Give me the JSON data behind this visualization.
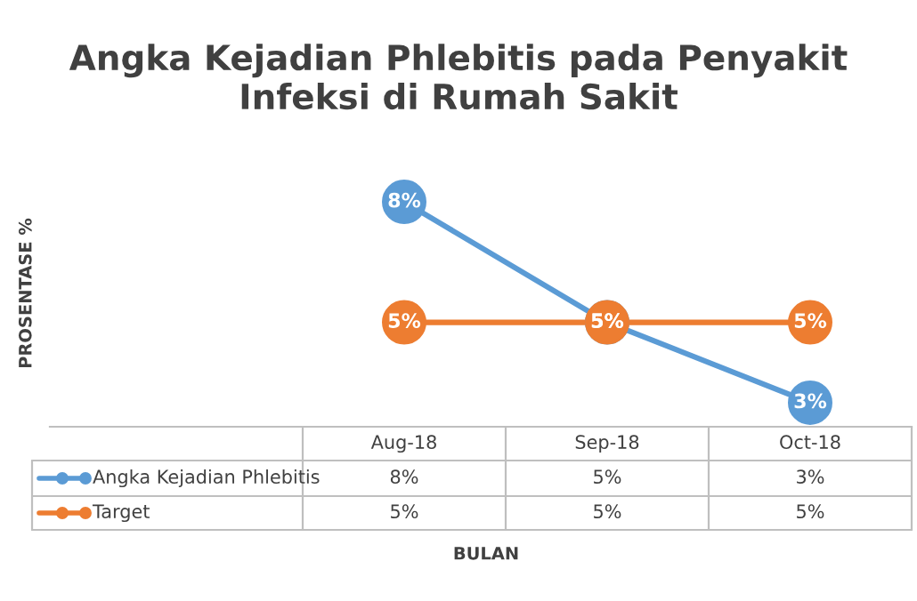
{
  "chart_data": {
    "type": "line",
    "title": "Angka Kejadian Phlebitis pada Penyakit\nInfeksi di Rumah Sakit",
    "annotations": [
      "PROSENTASE %",
      "BULAN"
    ],
    "categories": [
      "Aug-18",
      "Sep-18",
      "Oct-18"
    ],
    "series": [
      {
        "name": "Angka Kejadian Phlebitis",
        "color": "#5b9bd5",
        "values": [
          8,
          5,
          3
        ],
        "value_labels": [
          "8%",
          "5%",
          "3%"
        ]
      },
      {
        "name": "Target",
        "color": "#ed7d31",
        "values": [
          5,
          5,
          5
        ],
        "value_labels": [
          "5%",
          "5%",
          "5%"
        ]
      }
    ],
    "marker": "circle",
    "line_style": "solid",
    "legend": "bottom"
  }
}
